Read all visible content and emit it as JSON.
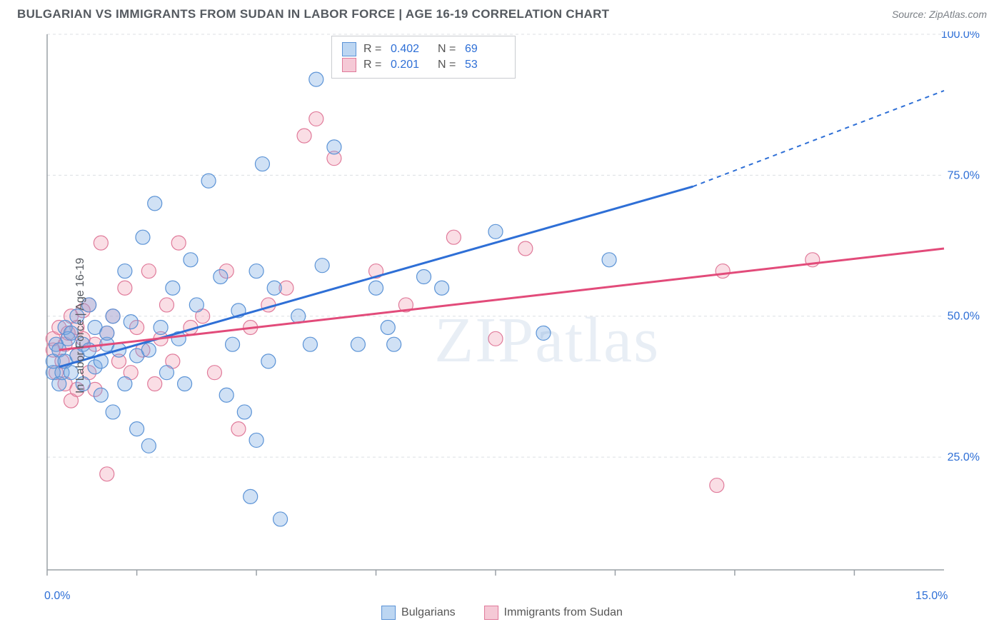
{
  "header": {
    "title": "BULGARIAN VS IMMIGRANTS FROM SUDAN IN LABOR FORCE | AGE 16-19 CORRELATION CHART",
    "source": "Source: ZipAtlas.com"
  },
  "chart": {
    "type": "scatter",
    "watermark": "ZIPatlas",
    "ylabel": "In Labor Force | Age 16-19",
    "xlim": [
      0,
      15
    ],
    "ylim": [
      5,
      100
    ],
    "xtick_positions": [
      0,
      1.5,
      3.5,
      5.5,
      7.5,
      9.5,
      11.5,
      13.5
    ],
    "xlabel_min": "0.0%",
    "xlabel_max": "15.0%",
    "ytick_positions": [
      25,
      50,
      75,
      100
    ],
    "ytick_labels": [
      "25.0%",
      "50.0%",
      "75.0%",
      "100.0%"
    ],
    "grid_color": "#dcdfe3",
    "border_color": "#9aa0a6",
    "background_color": "#ffffff",
    "marker_radius": 10,
    "marker_stroke_width": 1.2,
    "series": [
      {
        "key": "bulgarians",
        "label": "Bulgarians",
        "fill": "rgba(120,170,225,0.35)",
        "stroke": "#5b93d6",
        "line_color": "#2e6fd6",
        "r_value": "0.402",
        "n_value": "69",
        "swatch_fill": "#bcd6f2",
        "swatch_border": "#5b93d6",
        "trend": {
          "x1": 0.2,
          "y1": 41,
          "x2": 10.8,
          "y2": 73,
          "dash_x2": 15,
          "dash_y2": 90
        },
        "points": [
          [
            0.1,
            40
          ],
          [
            0.1,
            42
          ],
          [
            0.15,
            45
          ],
          [
            0.2,
            38
          ],
          [
            0.2,
            44
          ],
          [
            0.25,
            40
          ],
          [
            0.3,
            48
          ],
          [
            0.3,
            42
          ],
          [
            0.35,
            46
          ],
          [
            0.4,
            40
          ],
          [
            0.4,
            47
          ],
          [
            0.5,
            43
          ],
          [
            0.5,
            50
          ],
          [
            0.6,
            45
          ],
          [
            0.6,
            38
          ],
          [
            0.7,
            44
          ],
          [
            0.7,
            52
          ],
          [
            0.8,
            48
          ],
          [
            0.8,
            41
          ],
          [
            0.9,
            42
          ],
          [
            0.9,
            36
          ],
          [
            1.0,
            45
          ],
          [
            1.0,
            47
          ],
          [
            1.1,
            50
          ],
          [
            1.1,
            33
          ],
          [
            1.2,
            44
          ],
          [
            1.3,
            38
          ],
          [
            1.3,
            58
          ],
          [
            1.4,
            49
          ],
          [
            1.5,
            30
          ],
          [
            1.5,
            43
          ],
          [
            1.6,
            64
          ],
          [
            1.7,
            44
          ],
          [
            1.7,
            27
          ],
          [
            1.8,
            70
          ],
          [
            1.9,
            48
          ],
          [
            2.0,
            40
          ],
          [
            2.1,
            55
          ],
          [
            2.2,
            46
          ],
          [
            2.3,
            38
          ],
          [
            2.4,
            60
          ],
          [
            2.5,
            52
          ],
          [
            2.7,
            74
          ],
          [
            2.9,
            57
          ],
          [
            3.0,
            36
          ],
          [
            3.1,
            45
          ],
          [
            3.2,
            51
          ],
          [
            3.3,
            33
          ],
          [
            3.4,
            18
          ],
          [
            3.5,
            28
          ],
          [
            3.5,
            58
          ],
          [
            3.6,
            77
          ],
          [
            3.7,
            42
          ],
          [
            3.8,
            55
          ],
          [
            3.9,
            14
          ],
          [
            4.2,
            50
          ],
          [
            4.4,
            45
          ],
          [
            4.5,
            92
          ],
          [
            4.6,
            59
          ],
          [
            4.8,
            80
          ],
          [
            5.2,
            45
          ],
          [
            5.5,
            55
          ],
          [
            5.7,
            48
          ],
          [
            5.8,
            45
          ],
          [
            6.3,
            57
          ],
          [
            6.6,
            55
          ],
          [
            7.5,
            65
          ],
          [
            8.3,
            47
          ],
          [
            9.4,
            60
          ]
        ]
      },
      {
        "key": "sudan",
        "label": "Immigrants from Sudan",
        "fill": "rgba(240,160,180,0.35)",
        "stroke": "#e07a9a",
        "line_color": "#e24b7a",
        "r_value": "0.201",
        "n_value": "53",
        "swatch_fill": "#f5c9d6",
        "swatch_border": "#e07a9a",
        "trend": {
          "x1": 0.2,
          "y1": 44,
          "x2": 15,
          "y2": 62
        },
        "points": [
          [
            0.1,
            44
          ],
          [
            0.1,
            46
          ],
          [
            0.15,
            40
          ],
          [
            0.2,
            48
          ],
          [
            0.25,
            42
          ],
          [
            0.3,
            45
          ],
          [
            0.3,
            38
          ],
          [
            0.35,
            47
          ],
          [
            0.4,
            50
          ],
          [
            0.4,
            35
          ],
          [
            0.5,
            48
          ],
          [
            0.5,
            43
          ],
          [
            0.6,
            46
          ],
          [
            0.7,
            40
          ],
          [
            0.7,
            52
          ],
          [
            0.8,
            45
          ],
          [
            0.8,
            37
          ],
          [
            0.9,
            63
          ],
          [
            1.0,
            47
          ],
          [
            1.0,
            22
          ],
          [
            1.1,
            50
          ],
          [
            1.2,
            42
          ],
          [
            1.3,
            55
          ],
          [
            1.4,
            40
          ],
          [
            1.5,
            48
          ],
          [
            1.6,
            44
          ],
          [
            1.7,
            58
          ],
          [
            1.8,
            38
          ],
          [
            1.9,
            46
          ],
          [
            2.0,
            52
          ],
          [
            2.1,
            42
          ],
          [
            2.2,
            63
          ],
          [
            2.4,
            48
          ],
          [
            2.6,
            50
          ],
          [
            2.8,
            40
          ],
          [
            3.0,
            58
          ],
          [
            3.2,
            30
          ],
          [
            3.4,
            48
          ],
          [
            3.7,
            52
          ],
          [
            4.0,
            55
          ],
          [
            4.3,
            82
          ],
          [
            4.5,
            85
          ],
          [
            4.8,
            78
          ],
          [
            5.5,
            58
          ],
          [
            6.0,
            52
          ],
          [
            6.8,
            64
          ],
          [
            7.5,
            46
          ],
          [
            8.0,
            62
          ],
          [
            11.2,
            20
          ],
          [
            11.3,
            58
          ],
          [
            12.8,
            60
          ],
          [
            0.5,
            37
          ],
          [
            0.6,
            51
          ]
        ]
      }
    ]
  }
}
